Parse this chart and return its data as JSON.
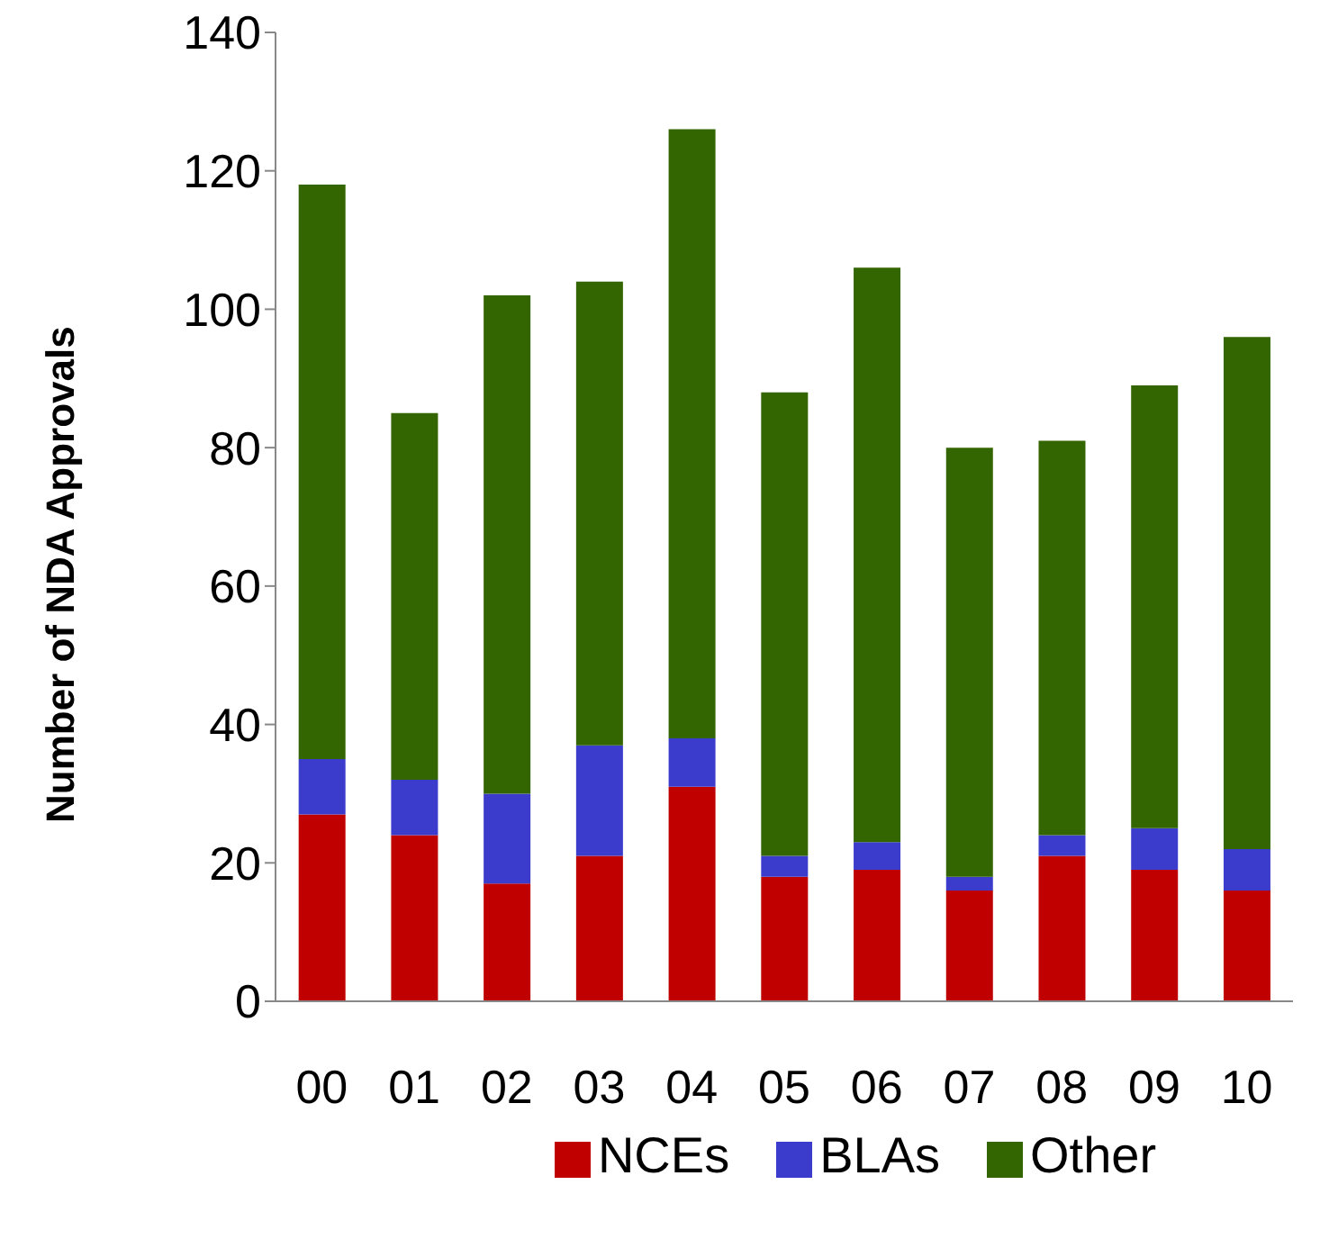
{
  "chart_data": {
    "type": "bar",
    "stacked": true,
    "ylabel": "Number of NDA Approvals",
    "categories": [
      "00",
      "01",
      "02",
      "03",
      "04",
      "05",
      "06",
      "07",
      "08",
      "09",
      "10"
    ],
    "series": [
      {
        "name": "NCEs",
        "color": "#c00000",
        "values": [
          27,
          24,
          17,
          21,
          31,
          18,
          19,
          16,
          21,
          19,
          16
        ]
      },
      {
        "name": "BLAs",
        "color": "#3c3ccc",
        "values": [
          8,
          8,
          13,
          16,
          7,
          3,
          4,
          2,
          3,
          6,
          6
        ]
      },
      {
        "name": "Other",
        "color": "#336600",
        "values": [
          83,
          53,
          72,
          67,
          88,
          67,
          83,
          62,
          57,
          64,
          74
        ]
      }
    ],
    "ylim": [
      0,
      140
    ],
    "yticks": [
      0,
      20,
      40,
      60,
      80,
      100,
      120,
      140
    ],
    "grid": false,
    "legend": "bottom"
  }
}
